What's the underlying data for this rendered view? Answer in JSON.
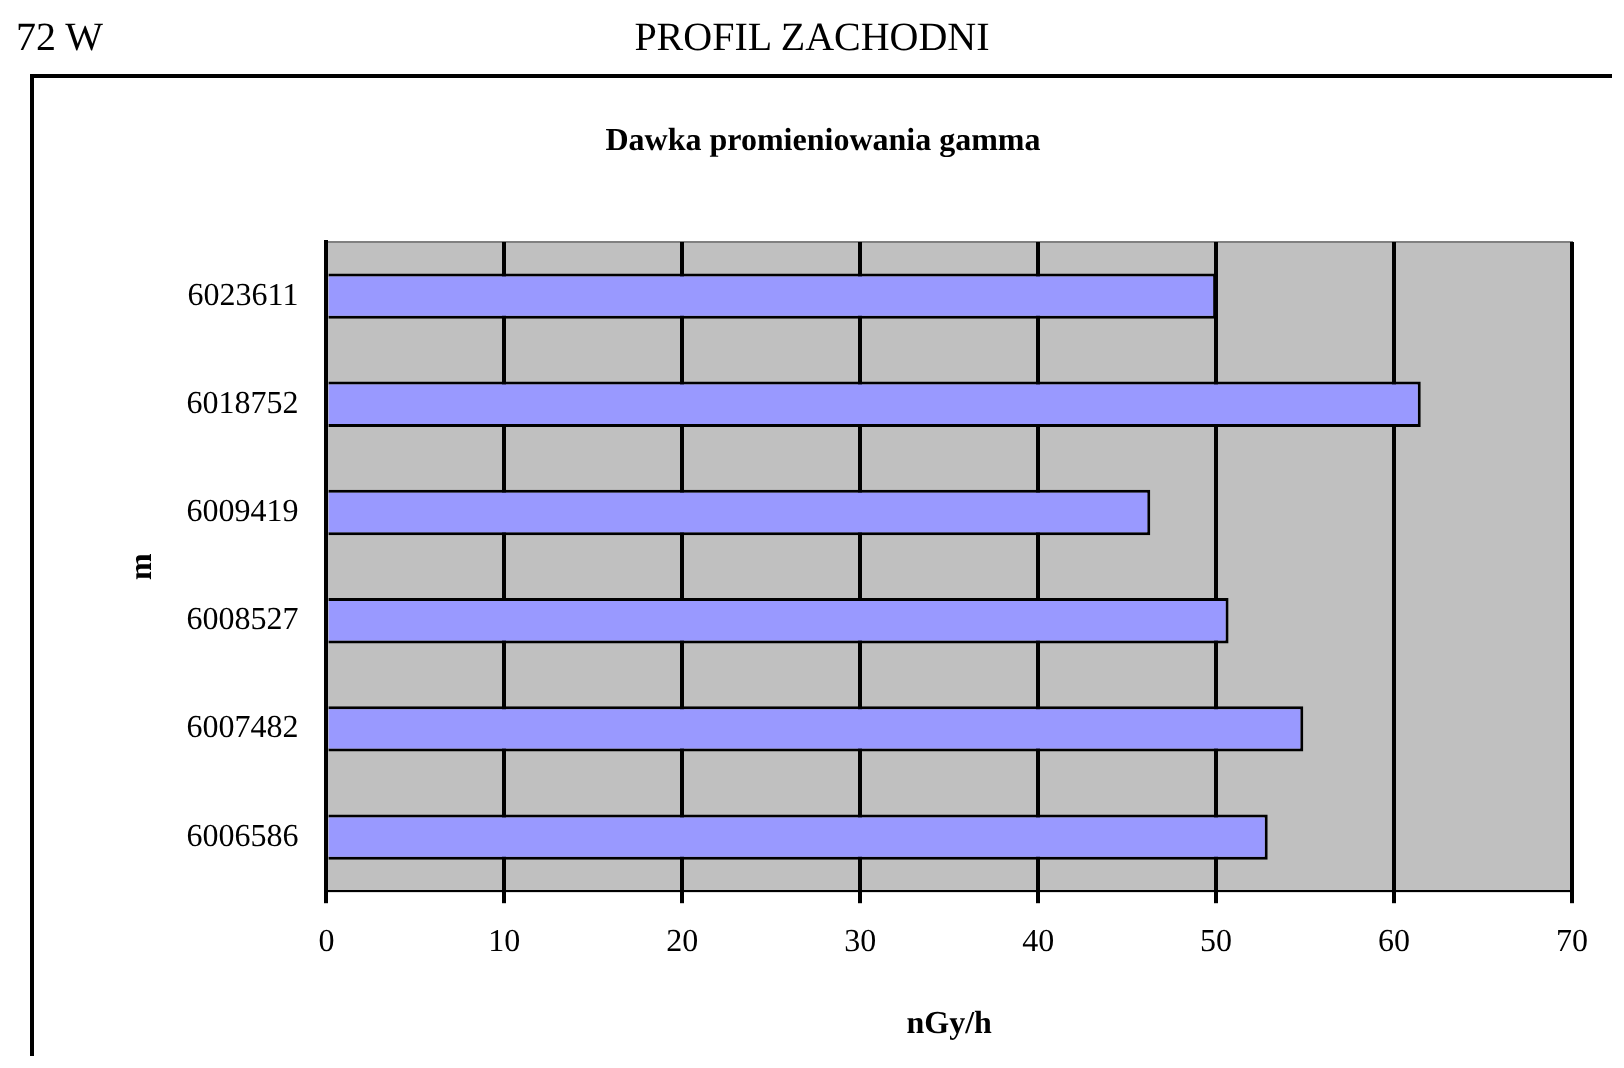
{
  "chart_data": {
    "type": "bar",
    "orientation": "horizontal",
    "title": "PROFIL ZACHODNI",
    "subtitle": "Dawka promieniowania gamma",
    "annotations": [
      "72 W"
    ],
    "xlabel": "nGy/h",
    "ylabel": "m",
    "categories": [
      "6023611",
      "6018752",
      "6009419",
      "6008527",
      "6007482",
      "6006586"
    ],
    "values": [
      50.0,
      61.5,
      46.3,
      50.7,
      54.9,
      52.9
    ],
    "color": "#9999ff",
    "xlim": [
      0,
      70
    ],
    "xticks": [
      0,
      10,
      20,
      30,
      40,
      50,
      60,
      70
    ],
    "grid": "x"
  }
}
